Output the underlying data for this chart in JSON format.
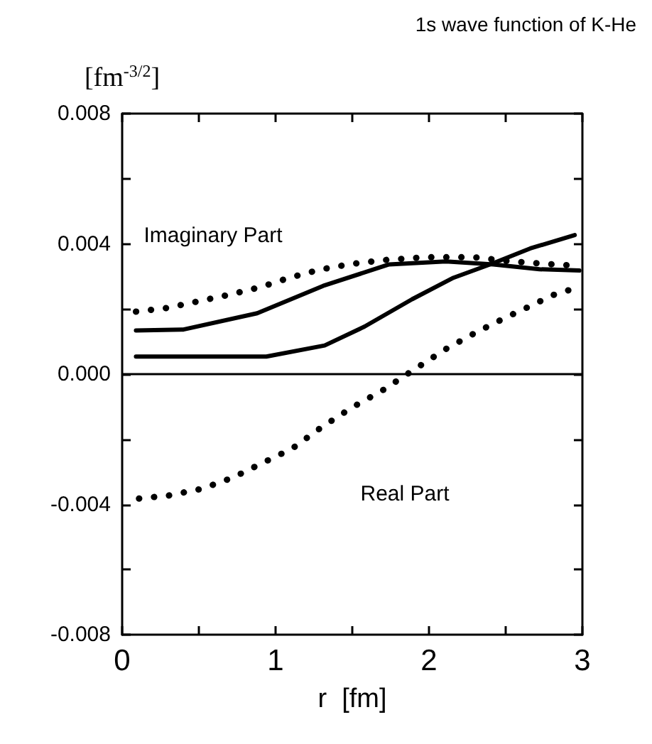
{
  "chart_data": {
    "type": "line",
    "title": "1s wave function of K-He",
    "xlabel": "r  [fm]",
    "ylabel": "[fm$^{-3/2}$]",
    "xlim": [
      0,
      3
    ],
    "xticks": [
      0,
      {
        "value": 0.5,
        "label": null
      },
      1,
      {
        "value": 1.5,
        "label": null
      },
      2,
      {
        "value": 2.5,
        "label": null
      },
      3
    ],
    "ylim": [
      -0.008,
      0.008
    ],
    "yticks": [
      -0.008,
      {
        "value": -0.006,
        "label": null
      },
      -0.004,
      {
        "value": -0.002,
        "label": null
      },
      {
        "value": 0,
        "label": "0.000"
      },
      {
        "value": 0.002,
        "label": null
      },
      0.004,
      {
        "value": 0.006,
        "label": null
      },
      0.008
    ],
    "grid": false,
    "marker": "none",
    "ref_lines": [
      {
        "axis": "y",
        "value": 0,
        "color": "#000000",
        "line_style": "solid"
      }
    ],
    "annotations": [
      "Imaginary Part",
      "Real Part"
    ],
    "series": [
      {
        "color": "#000000",
        "line_style": "solid",
        "x": [
          0.09,
          0.4,
          0.88,
          1.31,
          1.74,
          2.11,
          2.42,
          2.72,
          2.98
        ],
        "values": [
          0.00134,
          0.00137,
          0.00187,
          0.00271,
          0.00337,
          0.00346,
          0.00337,
          0.00322,
          0.00318
        ]
      },
      {
        "color": "#000000",
        "line_style": "dotted",
        "x": [
          0.09,
          0.29,
          0.5,
          0.7,
          0.9,
          1.09,
          1.29,
          1.49,
          1.7,
          1.98,
          2.29,
          2.54,
          2.78,
          2.99
        ],
        "values": [
          0.00192,
          0.00203,
          0.00224,
          0.00244,
          0.00267,
          0.00296,
          0.00321,
          0.00338,
          0.0035,
          0.00359,
          0.00359,
          0.00346,
          0.00338,
          0.00332
        ]
      },
      {
        "color": "#000000",
        "line_style": "solid",
        "x": [
          0.09,
          0.94,
          1.32,
          1.58,
          1.89,
          2.16,
          2.41,
          2.66,
          2.95
        ],
        "values": [
          0.00054,
          0.00054,
          0.00088,
          0.00146,
          0.0023,
          0.00296,
          0.00339,
          0.00386,
          0.00427
        ]
      },
      {
        "color": "#000000",
        "line_style": "dotted",
        "x": [
          0.11,
          0.3,
          0.52,
          0.72,
          0.91,
          1.11,
          1.3,
          1.5,
          1.7,
          1.9,
          2.11,
          2.31,
          2.51,
          2.71,
          2.79,
          3.0
        ],
        "values": [
          -0.00382,
          -0.00373,
          -0.00352,
          -0.00318,
          -0.00274,
          -0.00228,
          -0.00163,
          -0.00102,
          -0.00049,
          0.00013,
          0.00077,
          0.00129,
          0.00176,
          0.0022,
          0.0024,
          0.00271
        ]
      }
    ]
  }
}
